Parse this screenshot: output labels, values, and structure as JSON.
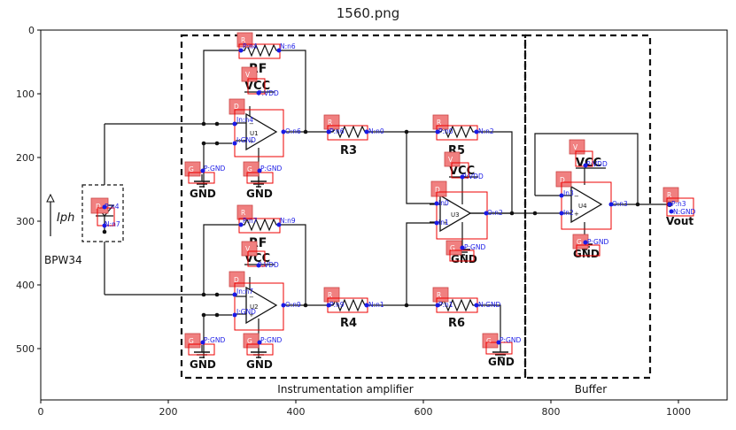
{
  "title": "1560.png",
  "axes": {
    "x_ticks": [
      "0",
      "200",
      "400",
      "600",
      "800",
      "1000"
    ],
    "y_ticks": [
      "0",
      "100",
      "200",
      "300",
      "400",
      "500"
    ]
  },
  "circuit": {
    "section_instrumentation": "Instrumentation amplifier",
    "section_buffer": "Buffer",
    "photodiode_name": "BPW34",
    "photocurrent": "Iph",
    "output": "Vout",
    "rf_top": "RF",
    "rf_bottom": "RF",
    "r3": "R3",
    "r4": "R4",
    "r5": "R5",
    "r6": "R6",
    "vcc_u1": "VCC",
    "vcc_u2": "VCC",
    "vcc_u3": "VCC",
    "vcc_u4": "VCC",
    "gnd_1": "GND",
    "gnd_2": "GND",
    "gnd_3": "GND",
    "gnd_4": "GND",
    "gnd_5": "GND",
    "gnd_6": "GND",
    "gnd_7": "GND",
    "u1": "U1",
    "u2": "U2",
    "u3": "U3",
    "u4": "U4"
  },
  "annotations": {
    "rf_top": {
      "tag": "R",
      "p": "P:n4",
      "n": "N:n6"
    },
    "vcc_u1": {
      "tag": "V",
      "p": "P:VDD"
    },
    "u1": {
      "tag": "D",
      "in1": "In:n4",
      "in2": "I:GND",
      "out": "O:n6"
    },
    "gnd_u1a": {
      "tag": "G",
      "p": "P:GND"
    },
    "gnd_u1b": {
      "tag": "G",
      "p": "P:GND"
    },
    "r3": {
      "tag": "R",
      "p": "P:n6",
      "n": "N:n0"
    },
    "r5": {
      "tag": "R",
      "p": "P:n0",
      "n": "N:n2"
    },
    "vcc_u3": {
      "tag": "V",
      "p": "P:VDD"
    },
    "u3": {
      "tag": "D",
      "in1": "In0",
      "in2": "In1",
      "out": "O:n2"
    },
    "gnd_u3": {
      "tag": "G",
      "p": "P:GND"
    },
    "vcc_u4": {
      "tag": "V",
      "p": "P:VDD"
    },
    "u4": {
      "tag": "D",
      "in1": "In3",
      "in2": "In2",
      "out": "O:n3"
    },
    "gnd_u4": {
      "tag": "G",
      "p": "P:GND"
    },
    "vout": {
      "tag": "R",
      "p": "P:n3",
      "n": "N:GND"
    },
    "photodiode": {
      "tag": "D",
      "p": "P:n4",
      "n": "N:n7"
    },
    "rf_bottom": {
      "tag": "R",
      "p": "P:n7",
      "n": "N:n9"
    },
    "vcc_u2": {
      "tag": "V",
      "p": "P:VDD"
    },
    "u2": {
      "tag": "D",
      "in1": "In:n7",
      "in2": "I:GND",
      "out": "O:n9"
    },
    "gnd_u2a": {
      "tag": "G",
      "p": "P:GND"
    },
    "gnd_u2b": {
      "tag": "G",
      "p": "P:GND"
    },
    "r4": {
      "tag": "R",
      "p": "P:n9",
      "n": "N:n1"
    },
    "r6": {
      "tag": "R",
      "p": "P:n1",
      "n": "N:GND"
    },
    "gnd_r6": {
      "tag": "G",
      "p": "P:GND"
    }
  }
}
